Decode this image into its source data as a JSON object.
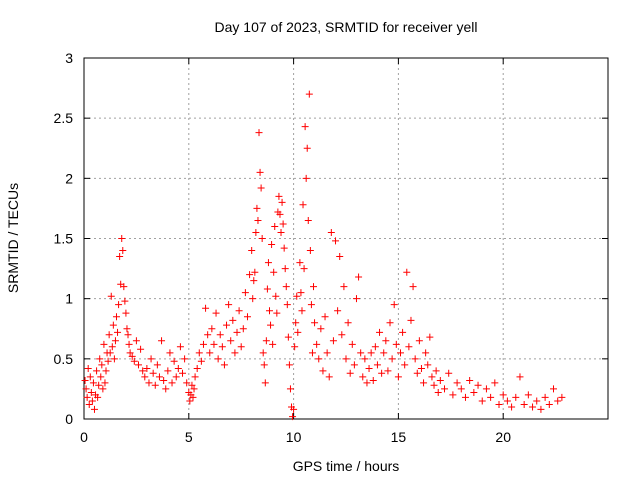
{
  "chart_data": {
    "type": "scatter",
    "title": "Day 107 of 2023, SRMTID for receiver yell",
    "xlabel": "GPS time / hours",
    "ylabel": "SRMTID / TECUs",
    "xlim": [
      0,
      25
    ],
    "ylim": [
      0,
      3
    ],
    "xticks": [
      0,
      5,
      10,
      15,
      20
    ],
    "xtick_labels": [
      "0",
      "5",
      "10",
      "15",
      "20"
    ],
    "yticks": [
      0,
      0.5,
      1,
      1.5,
      2,
      2.5,
      3
    ],
    "ytick_labels": [
      "0",
      "0.5",
      "1",
      "1.5",
      "2",
      "2.5",
      "3"
    ],
    "grid": true,
    "marker": "+",
    "series": [
      {
        "name": "yell",
        "color": "#ff0000",
        "points": [
          [
            0.05,
            0.32
          ],
          [
            0.1,
            0.25
          ],
          [
            0.15,
            0.18
          ],
          [
            0.2,
            0.42
          ],
          [
            0.25,
            0.12
          ],
          [
            0.3,
            0.35
          ],
          [
            0.35,
            0.22
          ],
          [
            0.4,
            0.15
          ],
          [
            0.45,
            0.3
          ],
          [
            0.5,
            0.08
          ],
          [
            0.55,
            0.2
          ],
          [
            0.6,
            0.4
          ],
          [
            0.65,
            0.18
          ],
          [
            0.7,
            0.28
          ],
          [
            0.75,
            0.5
          ],
          [
            0.8,
            0.35
          ],
          [
            0.85,
            0.45
          ],
          [
            0.9,
            0.25
          ],
          [
            0.95,
            0.62
          ],
          [
            1.0,
            0.3
          ],
          [
            1.05,
            0.4
          ],
          [
            1.1,
            0.55
          ],
          [
            1.15,
            0.48
          ],
          [
            1.2,
            0.7
          ],
          [
            1.25,
            0.55
          ],
          [
            1.3,
            1.02
          ],
          [
            1.35,
            0.6
          ],
          [
            1.4,
            0.78
          ],
          [
            1.45,
            0.5
          ],
          [
            1.5,
            0.65
          ],
          [
            1.55,
            0.85
          ],
          [
            1.6,
            0.72
          ],
          [
            1.65,
            0.95
          ],
          [
            1.7,
            1.35
          ],
          [
            1.75,
            1.12
          ],
          [
            1.8,
            1.5
          ],
          [
            1.85,
            1.4
          ],
          [
            1.9,
            1.1
          ],
          [
            1.95,
            0.98
          ],
          [
            2.0,
            0.88
          ],
          [
            2.05,
            0.75
          ],
          [
            2.1,
            0.7
          ],
          [
            2.15,
            0.62
          ],
          [
            2.2,
            0.55
          ],
          [
            2.3,
            0.52
          ],
          [
            2.4,
            0.48
          ],
          [
            2.5,
            0.65
          ],
          [
            2.6,
            0.45
          ],
          [
            2.7,
            0.58
          ],
          [
            2.8,
            0.4
          ],
          [
            2.9,
            0.35
          ],
          [
            3.0,
            0.42
          ],
          [
            3.1,
            0.3
          ],
          [
            3.2,
            0.5
          ],
          [
            3.3,
            0.38
          ],
          [
            3.4,
            0.28
          ],
          [
            3.5,
            0.45
          ],
          [
            3.6,
            0.35
          ],
          [
            3.7,
            0.65
          ],
          [
            3.8,
            0.32
          ],
          [
            3.9,
            0.25
          ],
          [
            4.0,
            0.4
          ],
          [
            4.1,
            0.55
          ],
          [
            4.2,
            0.3
          ],
          [
            4.3,
            0.48
          ],
          [
            4.4,
            0.35
          ],
          [
            4.5,
            0.42
          ],
          [
            4.6,
            0.6
          ],
          [
            4.7,
            0.38
          ],
          [
            4.8,
            0.5
          ],
          [
            4.9,
            0.3
          ],
          [
            5.0,
            0.22
          ],
          [
            5.05,
            0.15
          ],
          [
            5.1,
            0.2
          ],
          [
            5.15,
            0.28
          ],
          [
            5.2,
            0.18
          ],
          [
            5.25,
            0.25
          ],
          [
            5.3,
            0.35
          ],
          [
            5.4,
            0.42
          ],
          [
            5.5,
            0.55
          ],
          [
            5.6,
            0.48
          ],
          [
            5.7,
            0.62
          ],
          [
            5.8,
            0.92
          ],
          [
            5.9,
            0.7
          ],
          [
            6.0,
            0.55
          ],
          [
            6.1,
            0.75
          ],
          [
            6.2,
            0.62
          ],
          [
            6.3,
            0.88
          ],
          [
            6.4,
            0.5
          ],
          [
            6.5,
            0.7
          ],
          [
            6.6,
            0.6
          ],
          [
            6.7,
            0.45
          ],
          [
            6.8,
            0.78
          ],
          [
            6.9,
            0.95
          ],
          [
            7.0,
            0.65
          ],
          [
            7.1,
            0.82
          ],
          [
            7.2,
            0.55
          ],
          [
            7.3,
            0.72
          ],
          [
            7.4,
            0.9
          ],
          [
            7.5,
            0.6
          ],
          [
            7.6,
            0.75
          ],
          [
            7.7,
            1.05
          ],
          [
            7.8,
            0.85
          ],
          [
            7.9,
            1.2
          ],
          [
            8.0,
            1.4
          ],
          [
            8.05,
            1.0
          ],
          [
            8.1,
            1.15
          ],
          [
            8.15,
            1.22
          ],
          [
            8.2,
            1.55
          ],
          [
            8.25,
            1.75
          ],
          [
            8.3,
            1.65
          ],
          [
            8.35,
            2.38
          ],
          [
            8.4,
            2.05
          ],
          [
            8.45,
            1.92
          ],
          [
            8.5,
            1.5
          ],
          [
            8.55,
            0.55
          ],
          [
            8.6,
            0.45
          ],
          [
            8.65,
            0.3
          ],
          [
            8.7,
            0.65
          ],
          [
            8.75,
            1.08
          ],
          [
            8.8,
            1.3
          ],
          [
            8.85,
            0.9
          ],
          [
            8.9,
            0.78
          ],
          [
            8.95,
            1.45
          ],
          [
            9.0,
            0.62
          ],
          [
            9.05,
            1.22
          ],
          [
            9.1,
            1.6
          ],
          [
            9.15,
            1.02
          ],
          [
            9.2,
            0.88
          ],
          [
            9.25,
            1.72
          ],
          [
            9.3,
            1.85
          ],
          [
            9.35,
            1.7
          ],
          [
            9.4,
            1.55
          ],
          [
            9.45,
            1.8
          ],
          [
            9.5,
            1.62
          ],
          [
            9.55,
            1.42
          ],
          [
            9.6,
            1.25
          ],
          [
            9.65,
            1.1
          ],
          [
            9.7,
            0.95
          ],
          [
            9.75,
            0.68
          ],
          [
            9.8,
            0.45
          ],
          [
            9.85,
            0.25
          ],
          [
            9.9,
            0.1
          ],
          [
            9.95,
            0.02
          ],
          [
            10.0,
            0.08
          ],
          [
            10.05,
            0.6
          ],
          [
            10.1,
            0.8
          ],
          [
            10.15,
            1.02
          ],
          [
            10.2,
            0.72
          ],
          [
            10.3,
            1.3
          ],
          [
            10.35,
            1.05
          ],
          [
            10.4,
            0.9
          ],
          [
            10.45,
            1.78
          ],
          [
            10.5,
            1.25
          ],
          [
            10.55,
            2.43
          ],
          [
            10.6,
            2.0
          ],
          [
            10.65,
            2.25
          ],
          [
            10.7,
            1.65
          ],
          [
            10.75,
            2.7
          ],
          [
            10.8,
            1.4
          ],
          [
            10.85,
            0.95
          ],
          [
            10.9,
            0.55
          ],
          [
            10.95,
            1.1
          ],
          [
            11.0,
            0.8
          ],
          [
            11.1,
            0.62
          ],
          [
            11.2,
            0.5
          ],
          [
            11.3,
            0.75
          ],
          [
            11.4,
            0.4
          ],
          [
            11.5,
            0.85
          ],
          [
            11.6,
            0.55
          ],
          [
            11.7,
            0.35
          ],
          [
            11.8,
            1.55
          ],
          [
            11.9,
            0.65
          ],
          [
            12.0,
            1.48
          ],
          [
            12.1,
            0.9
          ],
          [
            12.2,
            1.35
          ],
          [
            12.3,
            0.7
          ],
          [
            12.4,
            1.1
          ],
          [
            12.5,
            0.5
          ],
          [
            12.6,
            0.8
          ],
          [
            12.7,
            0.38
          ],
          [
            12.8,
            0.62
          ],
          [
            12.9,
            0.45
          ],
          [
            13.0,
            1.0
          ],
          [
            13.1,
            1.18
          ],
          [
            13.2,
            0.55
          ],
          [
            13.3,
            0.35
          ],
          [
            13.4,
            0.5
          ],
          [
            13.5,
            0.3
          ],
          [
            13.6,
            0.42
          ],
          [
            13.7,
            0.55
          ],
          [
            13.8,
            0.32
          ],
          [
            13.9,
            0.6
          ],
          [
            14.0,
            0.45
          ],
          [
            14.1,
            0.72
          ],
          [
            14.2,
            0.38
          ],
          [
            14.3,
            0.55
          ],
          [
            14.4,
            0.65
          ],
          [
            14.5,
            0.4
          ],
          [
            14.6,
            0.8
          ],
          [
            14.7,
            0.5
          ],
          [
            14.8,
            0.95
          ],
          [
            14.9,
            0.62
          ],
          [
            15.0,
            0.35
          ],
          [
            15.1,
            0.55
          ],
          [
            15.2,
            0.72
          ],
          [
            15.3,
            0.45
          ],
          [
            15.4,
            1.22
          ],
          [
            15.5,
            0.6
          ],
          [
            15.6,
            0.82
          ],
          [
            15.7,
            1.1
          ],
          [
            15.8,
            0.5
          ],
          [
            15.9,
            0.38
          ],
          [
            16.0,
            0.65
          ],
          [
            16.1,
            0.42
          ],
          [
            16.2,
            0.3
          ],
          [
            16.3,
            0.55
          ],
          [
            16.4,
            0.45
          ],
          [
            16.5,
            0.68
          ],
          [
            16.6,
            0.35
          ],
          [
            16.7,
            0.28
          ],
          [
            16.8,
            0.4
          ],
          [
            16.9,
            0.22
          ],
          [
            17.0,
            0.32
          ],
          [
            17.2,
            0.25
          ],
          [
            17.4,
            0.38
          ],
          [
            17.6,
            0.2
          ],
          [
            17.8,
            0.3
          ],
          [
            18.0,
            0.25
          ],
          [
            18.2,
            0.18
          ],
          [
            18.4,
            0.32
          ],
          [
            18.6,
            0.22
          ],
          [
            18.8,
            0.28
          ],
          [
            19.0,
            0.15
          ],
          [
            19.2,
            0.25
          ],
          [
            19.4,
            0.18
          ],
          [
            19.6,
            0.3
          ],
          [
            19.8,
            0.12
          ],
          [
            20.0,
            0.2
          ],
          [
            20.2,
            0.15
          ],
          [
            20.4,
            0.1
          ],
          [
            20.6,
            0.18
          ],
          [
            20.8,
            0.35
          ],
          [
            21.0,
            0.12
          ],
          [
            21.2,
            0.2
          ],
          [
            21.4,
            0.1
          ],
          [
            21.6,
            0.15
          ],
          [
            21.8,
            0.08
          ],
          [
            22.0,
            0.18
          ],
          [
            22.2,
            0.12
          ],
          [
            22.4,
            0.25
          ],
          [
            22.6,
            0.15
          ],
          [
            22.8,
            0.18
          ]
        ]
      }
    ]
  }
}
